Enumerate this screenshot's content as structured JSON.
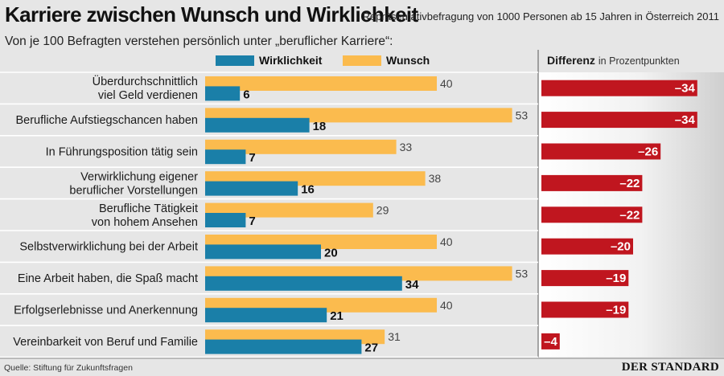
{
  "title": "Karriere zwischen Wunsch und Wirklichkeit",
  "subtitle": "Repräsentativbefragung von 1000 Personen ab 15 Jahren in Österreich 2011",
  "question": "Von je 100 Befragten verstehen persönlich unter „beruflicher Karriere“:",
  "legend": {
    "reality": "Wirklichkeit",
    "wish": "Wunsch",
    "difference": "Differenz",
    "difference_unit": "in Prozentpunkten"
  },
  "source": "Quelle: Stiftung für Zukunftsfragen",
  "logo_text": "DER STANDARD",
  "colors": {
    "reality": "#1a7fa8",
    "wish": "#fbbb4e",
    "difference": "#c0161f",
    "row_line": "#ffffff"
  },
  "chart_data": {
    "type": "bar",
    "categories": [
      [
        "Überdurchschnittlich",
        "viel Geld verdienen"
      ],
      [
        "Berufliche Aufstiegschancen haben"
      ],
      [
        "In Führungsposition tätig sein"
      ],
      [
        "Verwirklichung eigener",
        "beruflicher Vorstellungen"
      ],
      [
        "Berufliche Tätigkeit",
        "von hohem Ansehen"
      ],
      [
        "Selbstverwirklichung bei der Arbeit"
      ],
      [
        "Eine Arbeit haben, die Spaß macht"
      ],
      [
        "Erfolgserlebnisse und Anerkennung"
      ],
      [
        "Vereinbarkeit von Beruf und Familie"
      ]
    ],
    "series": [
      {
        "name": "Wirklichkeit",
        "values": [
          6,
          18,
          7,
          16,
          7,
          20,
          34,
          21,
          27
        ]
      },
      {
        "name": "Wunsch",
        "values": [
          40,
          53,
          33,
          38,
          29,
          40,
          53,
          40,
          31
        ]
      }
    ],
    "difference": {
      "name": "Differenz",
      "values": [
        -34,
        -34,
        -26,
        -22,
        -22,
        -20,
        -19,
        -19,
        -4
      ],
      "labels": [
        "–34",
        "–34",
        "–26",
        "–22",
        "–22",
        "–20",
        "–19",
        "–19",
        "–4"
      ]
    },
    "grid": false
  }
}
